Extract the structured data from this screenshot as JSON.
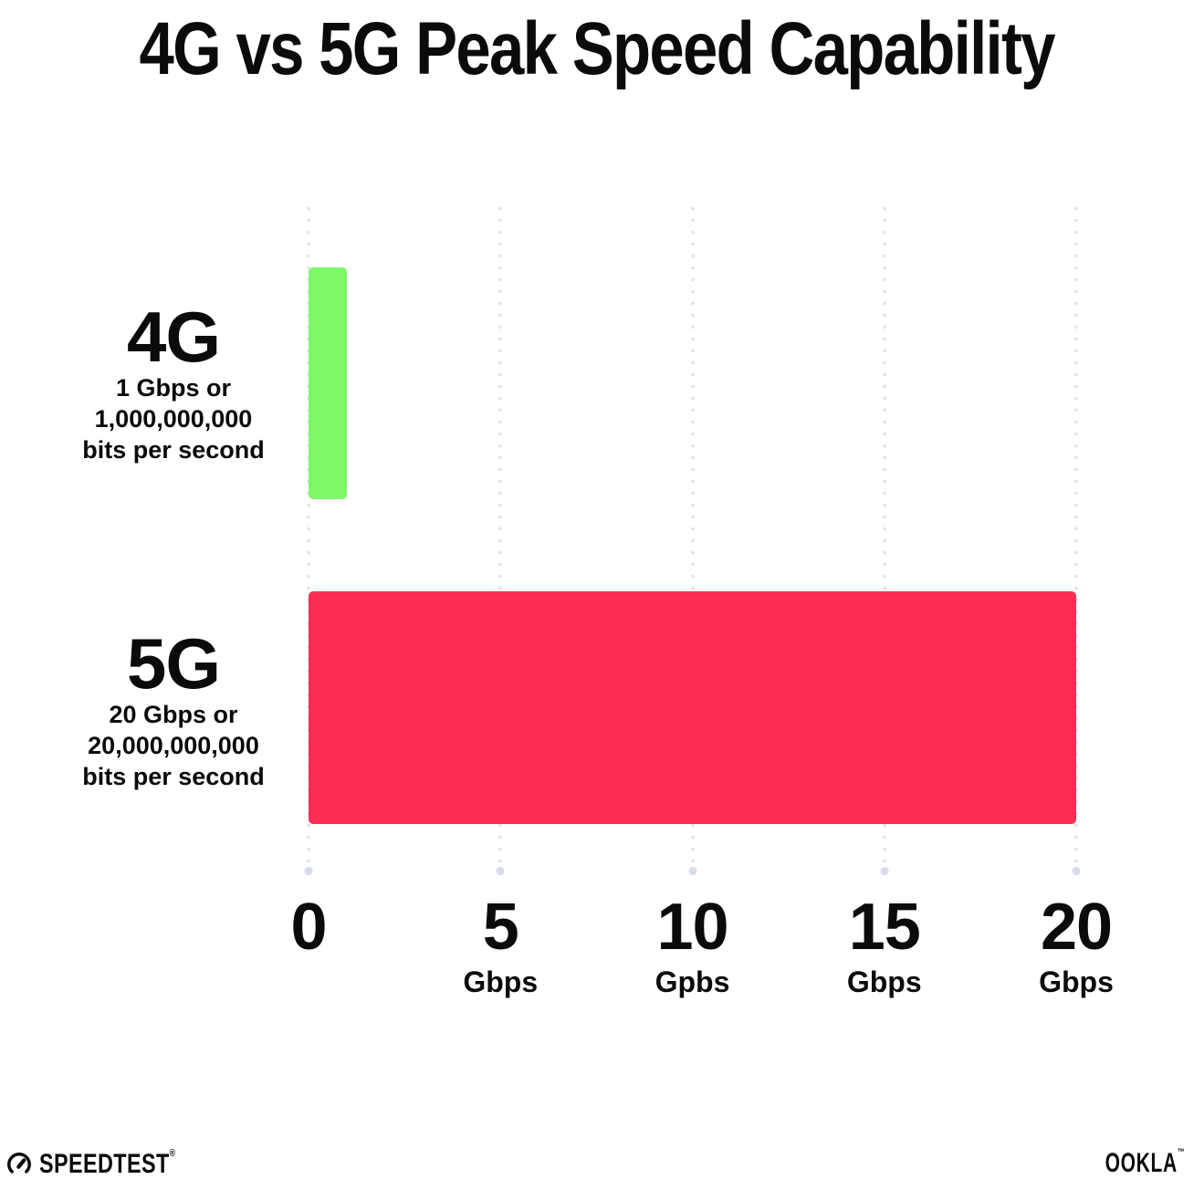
{
  "title": "4G vs 5G Peak Speed Capability",
  "chart_data": {
    "type": "bar",
    "orientation": "horizontal",
    "title": "4G vs 5G Peak Speed Capability",
    "categories": [
      "4G",
      "5G"
    ],
    "values": [
      1,
      20
    ],
    "value_unit": "Gbps",
    "bar_colors": [
      "#7EF768",
      "#FD2E56"
    ],
    "xlim": [
      0,
      20
    ],
    "xlabel": "",
    "ylabel": "",
    "grid": "vertical-dotted",
    "legend": false,
    "row_annotations": [
      {
        "label": "4G",
        "lines": [
          "1 Gbps or",
          "1,000,000,000",
          "bits per second"
        ]
      },
      {
        "label": "5G",
        "lines": [
          "20 Gbps or",
          "20,000,000,000",
          "bits per second"
        ]
      }
    ],
    "x_ticks": [
      {
        "value": 0,
        "label": "0",
        "unit": ""
      },
      {
        "value": 5,
        "label": "5",
        "unit": "Gbps"
      },
      {
        "value": 10,
        "label": "10",
        "unit": "Gpbs"
      },
      {
        "value": 15,
        "label": "15",
        "unit": "Gbps"
      },
      {
        "value": 20,
        "label": "20",
        "unit": "Gbps"
      }
    ]
  },
  "footer": {
    "speedtest_label": "SPEEDTEST",
    "speedtest_mark": "®",
    "ookla_label": "OOKLA",
    "ookla_mark": "™"
  },
  "colors": {
    "bar_4g": "#7EF768",
    "bar_5g": "#FD2E56",
    "grid_dot": "#DFE2EC",
    "text": "#0B0B0B",
    "background": "#FFFFFF"
  }
}
